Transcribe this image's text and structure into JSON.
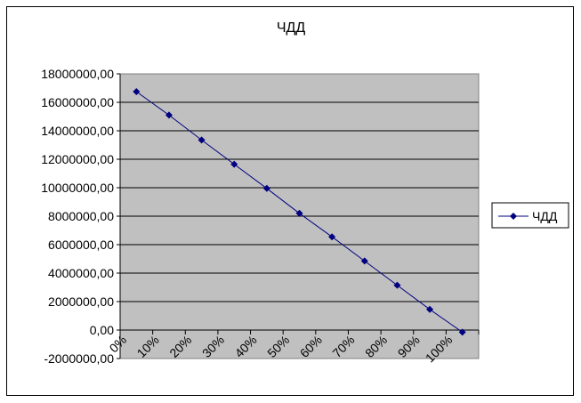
{
  "chart_data": {
    "type": "line",
    "title": "ЧДД",
    "xlabel": "",
    "ylabel": "",
    "categories": [
      "0%",
      "10%",
      "20%",
      "30%",
      "40%",
      "50%",
      "60%",
      "70%",
      "80%",
      "90%",
      "100%"
    ],
    "series": [
      {
        "name": "ЧДД",
        "values": [
          16750000,
          15100000,
          13350000,
          11650000,
          9950000,
          8200000,
          6550000,
          4850000,
          3150000,
          1450000,
          -150000
        ],
        "color": "#000080",
        "marker": "diamond"
      }
    ],
    "y_ticks": [
      "18000000,00",
      "16000000,00",
      "14000000,00",
      "12000000,00",
      "10000000,00",
      "8000000,00",
      "6000000,00",
      "4000000,00",
      "2000000,00",
      "0,00",
      "-2000000,00"
    ],
    "x_ticks": [
      "0%",
      "10%",
      "20%",
      "30%",
      "40%",
      "50%",
      "60%",
      "70%",
      "80%",
      "90%",
      "100%"
    ],
    "ylim": [
      -2000000,
      18000000
    ],
    "grid": true,
    "plot_background": "#c0c0c0",
    "legend": {
      "position": "right",
      "labels": [
        "ЧДД"
      ]
    }
  }
}
